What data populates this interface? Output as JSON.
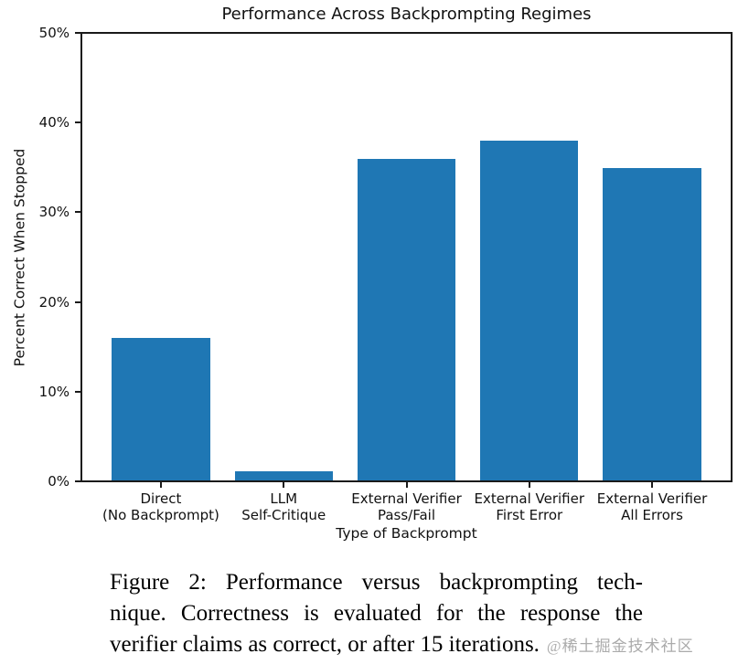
{
  "chart_data": {
    "type": "bar",
    "title": "Performance Across Backprompting Regimes",
    "xlabel": "Type of Backprompt",
    "ylabel": "Percent Correct When Stopped",
    "categories": [
      "Direct\n(No Backprompt)",
      "LLM\nSelf-Critique",
      "External Verifier\nPass/Fail",
      "External Verifier\nFirst Error",
      "External Verifier\nAll Errors"
    ],
    "values": [
      16,
      1,
      36,
      38,
      35
    ],
    "ylim": [
      0,
      50
    ],
    "ytick_step": 10,
    "ytick_labels": [
      "0%",
      "10%",
      "20%",
      "30%",
      "40%",
      "50%"
    ],
    "bar_color": "#1f77b4",
    "bar_width_fraction": 0.8,
    "grid": false,
    "legend_position": "none"
  },
  "caption": {
    "lines": [
      "Figure 2: Performance versus backprompting tech-",
      "nique. Correctness is evaluated for the response the",
      "verifier claims as correct, or after 15 iterations."
    ],
    "watermark": "@稀土掘金技术社区"
  }
}
